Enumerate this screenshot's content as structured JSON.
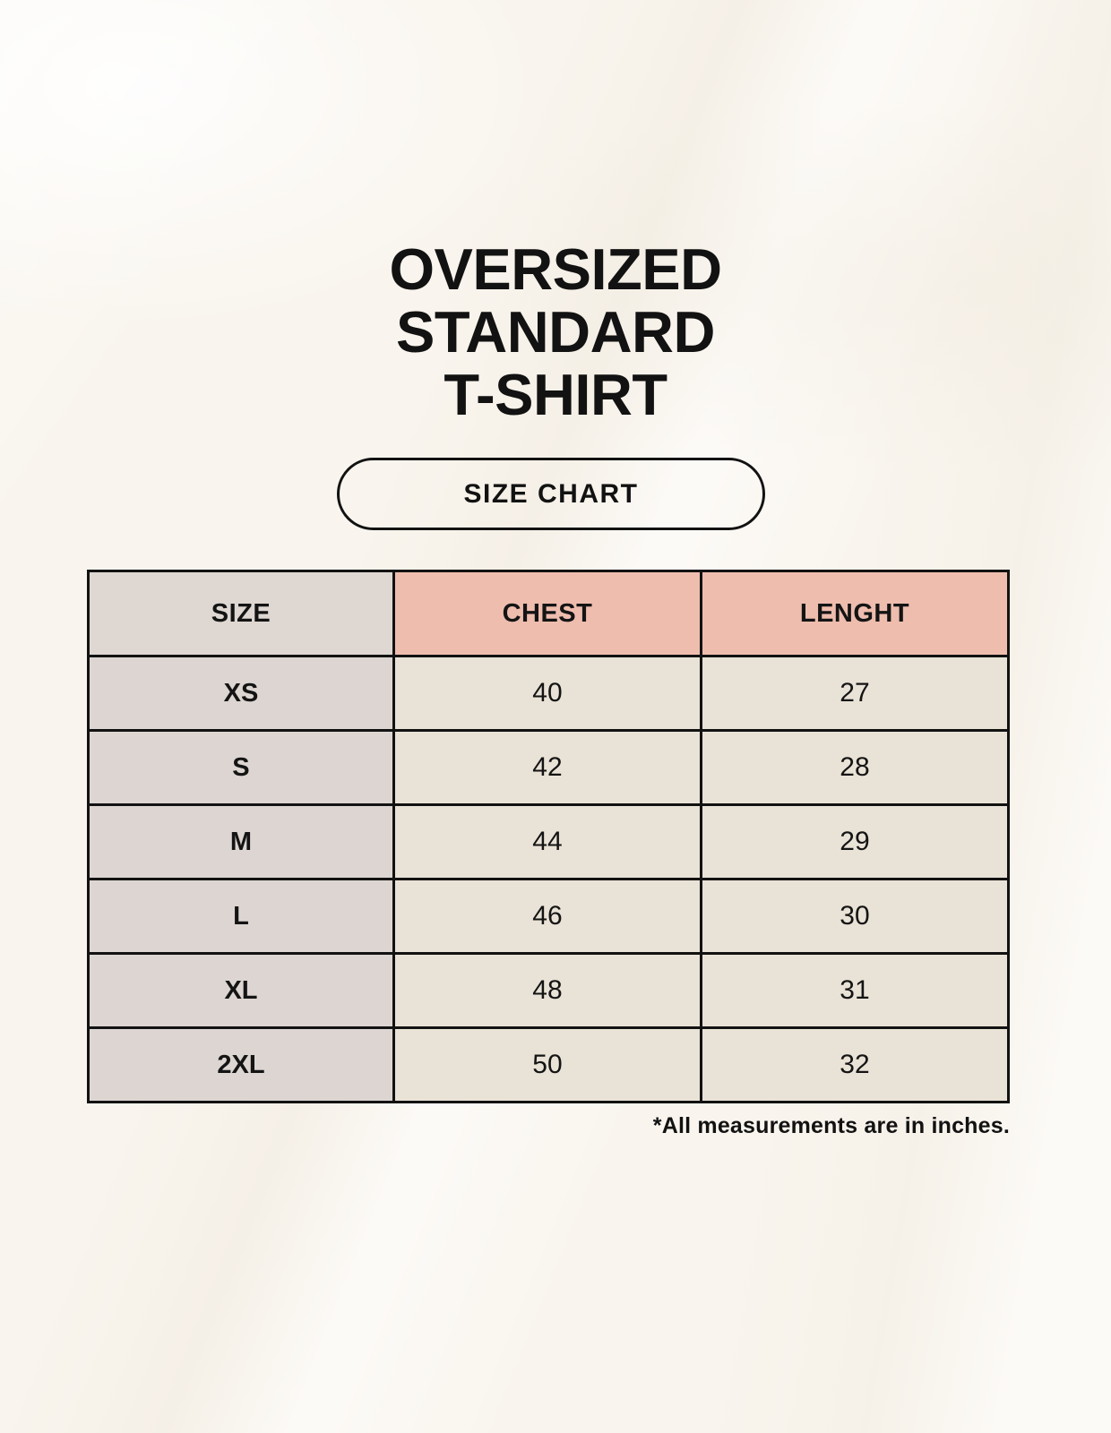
{
  "header": {
    "title_lines": [
      "OVERSIZED",
      "STANDARD",
      "T-SHIRT"
    ],
    "badge_label": "SIZE CHART"
  },
  "chart_data": {
    "type": "table",
    "title": "OVERSIZED STANDARD T-SHIRT SIZE CHART",
    "columns": [
      "SIZE",
      "CHEST",
      "LENGHT"
    ],
    "rows": [
      [
        "XS",
        "40",
        "27"
      ],
      [
        "S",
        "42",
        "28"
      ],
      [
        "M",
        "44",
        "29"
      ],
      [
        "L",
        "46",
        "30"
      ],
      [
        "XL",
        "48",
        "31"
      ],
      [
        "2XL",
        "50",
        "32"
      ]
    ],
    "units": "inches"
  },
  "footer": {
    "note": "*All measurements are in inches."
  },
  "colors": {
    "page_background": "#f9f5ee",
    "header_size_cell": "#ded7d2",
    "header_measure_cell": "#eebdae",
    "size_column_cell": "#dcd5d1",
    "data_cell": "#e9e2d6",
    "table_border": "#121212",
    "text": "#141414"
  }
}
